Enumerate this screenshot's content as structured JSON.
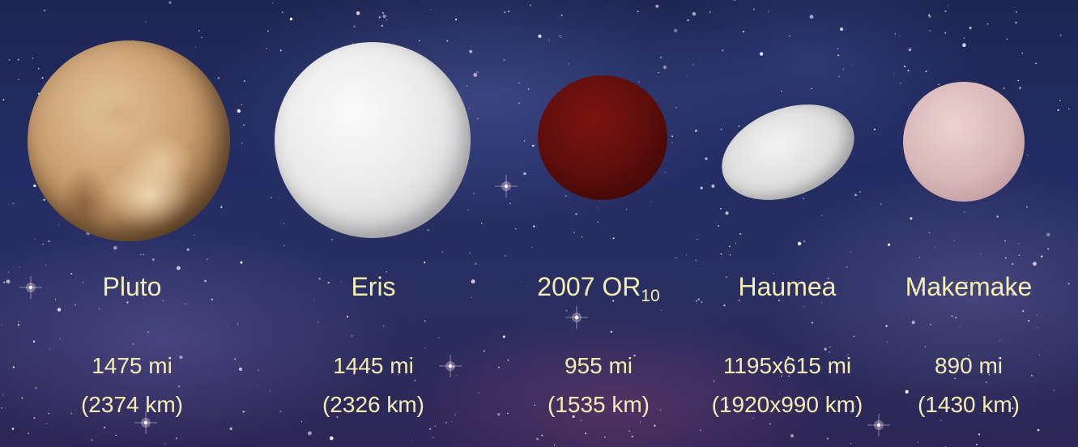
{
  "scene": {
    "description_free": true,
    "objects": [
      {
        "id": "pluto",
        "name": "Pluto",
        "name_sub": "",
        "size_mi": "1475 mi",
        "size_km": "(2374 km)",
        "color": "#c99f70"
      },
      {
        "id": "eris",
        "name": "Eris",
        "name_sub": "",
        "size_mi": "1445 mi",
        "size_km": "(2326 km)",
        "color": "#e8e8e8"
      },
      {
        "id": "or10",
        "name": "2007 OR",
        "name_sub": "10",
        "size_mi": "955 mi",
        "size_km": "(1535 km)",
        "color": "#5e0e0c"
      },
      {
        "id": "haumea",
        "name": "Haumea",
        "name_sub": "",
        "size_mi": "1195x615 mi",
        "size_km": "(1920x990 km)",
        "color": "#dcdcdc"
      },
      {
        "id": "makemake",
        "name": "Makemake",
        "name_sub": "",
        "size_mi": "890 mi",
        "size_km": "(1430 km)",
        "color": "#d7b6b7"
      }
    ],
    "label_color": "#f4eeb4",
    "background_color": "#232d63"
  }
}
